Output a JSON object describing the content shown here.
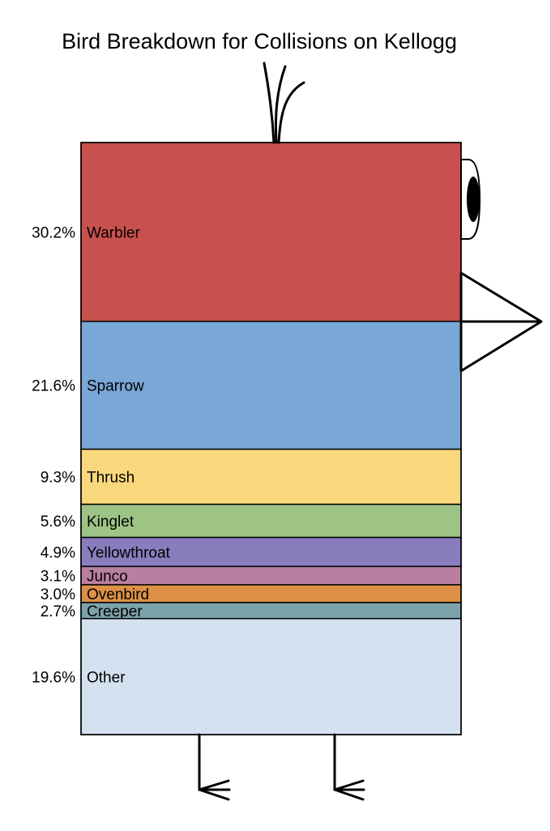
{
  "chart_data": {
    "type": "bar",
    "layout": "stacked-single-column",
    "title": "Bird Breakdown for Collisions on Kellogg",
    "unit": "%",
    "categories": [
      "Warbler",
      "Sparrow",
      "Thrush",
      "Kinglet",
      "Yellowthroat",
      "Junco",
      "Ovenbird",
      "Creeper",
      "Other"
    ],
    "values": [
      30.2,
      21.6,
      9.3,
      5.6,
      4.9,
      3.1,
      3.0,
      2.7,
      19.6
    ],
    "value_labels": [
      "30.2%",
      "21.6%",
      "9.3%",
      "5.6%",
      "4.9%",
      "3.1%",
      "3.0%",
      "2.7%",
      "19.6%"
    ],
    "colors": [
      "#c9514d",
      "#79a7d6",
      "#f9d77c",
      "#9ec485",
      "#8a7dbd",
      "#b97fa0",
      "#dc9146",
      "#7ca2ab",
      "#d4e1f0"
    ],
    "decoration": "bird drawing: crest feathers, eye, beak, legs"
  }
}
